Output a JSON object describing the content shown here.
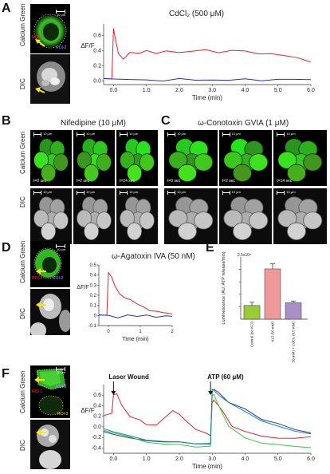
{
  "panels": {
    "A": {
      "letter": "A",
      "row_labels": [
        "Calcium Green",
        "DIC"
      ],
      "scale_text": "10 μm",
      "roi_labels": [
        "ROI-1",
        "ROI-2"
      ],
      "chart_title": "CdCl₂ (500 μM)"
    },
    "B": {
      "letter": "B",
      "title": "Nifedipine (10 μM)",
      "row_labels": [
        "Calcium Green",
        "DIC"
      ],
      "times": [
        "t=0 sec",
        "t=2 sec",
        "t=24 sec"
      ],
      "scale_text": "10 μm"
    },
    "C": {
      "letter": "C",
      "title": "ω-Conotoxin GVIA (1 μM)",
      "times": [
        "t=0 sec",
        "t=2 sec",
        "t=14 sec"
      ],
      "scale_text": "10 μm"
    },
    "D": {
      "letter": "D",
      "row_labels": [
        "Calcium Green",
        "DIC"
      ],
      "roi_labels": [
        "ROI-1",
        "ROI-2"
      ],
      "scale_text": "10 μm",
      "chart_title": "ω-Agatoxin IVA (50 nM)"
    },
    "E": {
      "letter": "E",
      "y_exp": "2.5x10⁵"
    },
    "F": {
      "letter": "F",
      "row_labels": [
        "Calcium Green",
        "DIC"
      ],
      "roi_labels": [
        "ROI-1",
        "ROI-2",
        "ROI-3"
      ],
      "scale_text": "10 μm",
      "annotations": [
        "Laser Wound",
        "ATP (60 μM)"
      ]
    }
  },
  "chart_data": [
    {
      "type": "line",
      "panel": "A",
      "title": "CdCl₂ (500 μM)",
      "xlabel": "Time (min)",
      "ylabel": "ΔF/F",
      "xlim": [
        -0.3,
        6.0
      ],
      "ylim": [
        -0.05,
        0.75
      ],
      "xticks": [
        "0.0",
        "1.0",
        "2.0",
        "3.0",
        "4.0",
        "5.0",
        "6.0"
      ],
      "yticks": [
        "0.0",
        "0.2",
        "0.4",
        "0.6"
      ],
      "series": [
        {
          "color": "#e8202a",
          "x": [
            -0.3,
            -0.05,
            0.0,
            0.05,
            0.15,
            0.3,
            0.5,
            0.8,
            1.0,
            1.3,
            1.6,
            2.0,
            2.4,
            2.8,
            3.2,
            3.6,
            4.0,
            4.4,
            4.8,
            5.2,
            5.6,
            6.0
          ],
          "y": [
            0.02,
            0.02,
            0.68,
            0.58,
            0.35,
            0.28,
            0.38,
            0.36,
            0.4,
            0.37,
            0.4,
            0.38,
            0.4,
            0.42,
            0.38,
            0.41,
            0.4,
            0.36,
            0.36,
            0.33,
            0.3,
            0.24
          ]
        },
        {
          "color": "#2030c8",
          "x": [
            -0.3,
            0.0,
            0.5,
            1.0,
            1.5,
            2.0,
            2.5,
            3.0,
            3.5,
            4.0,
            4.5,
            5.0,
            5.5,
            6.0
          ],
          "y": [
            0.02,
            0.02,
            0.01,
            0.02,
            0.0,
            0.02,
            0.01,
            0.02,
            0.0,
            0.02,
            0.01,
            0.02,
            0.01,
            0.02
          ]
        }
      ]
    },
    {
      "type": "line",
      "panel": "D",
      "title": "ω-Agatoxin IVA (50 nM)",
      "xlabel": "Time (min)",
      "ylabel": "ΔF/F",
      "xlim": [
        -0.3,
        2.0
      ],
      "ylim": [
        -0.1,
        0.5
      ],
      "xticks": [
        "0",
        "1",
        "2"
      ],
      "yticks": [
        "-0.1",
        "0",
        "0.1",
        "0.2",
        "0.3",
        "0.4",
        "0.5"
      ],
      "series": [
        {
          "color": "#e8202a",
          "x": [
            -0.3,
            -0.05,
            0.0,
            0.1,
            0.2,
            0.35,
            0.5,
            0.7,
            0.9,
            1.1,
            1.3,
            1.5,
            1.7,
            2.0
          ],
          "y": [
            0.0,
            0.0,
            0.42,
            0.38,
            0.3,
            0.22,
            0.18,
            0.15,
            0.12,
            0.08,
            0.05,
            0.04,
            0.03,
            0.02
          ]
        },
        {
          "color": "#2030c8",
          "x": [
            -0.3,
            0.0,
            0.3,
            0.6,
            0.9,
            1.2,
            1.5,
            1.8,
            2.0
          ],
          "y": [
            0.0,
            0.0,
            -0.02,
            0.01,
            -0.01,
            0.0,
            -0.02,
            0.0,
            -0.01
          ]
        }
      ]
    },
    {
      "type": "bar",
      "panel": "E",
      "ylabel": "Luminescence (AU; ATP release/min)",
      "y_exponent_label": "2.5x10⁵",
      "ylim": [
        0,
        2.5
      ],
      "categories": [
        "Control (no KCl)",
        "KCl (50 mM)",
        "KCl (50 mM) + CdCl₂ (0.5 mM)"
      ],
      "values": [
        0.55,
        2.02,
        0.66
      ],
      "errors": [
        0.13,
        0.2,
        0.07
      ],
      "colors": [
        "#99cc33",
        "#ee9a9a",
        "#a98fc4"
      ]
    },
    {
      "type": "line",
      "panel": "F",
      "xlabel": "Time (min)",
      "ylabel": "ΔF/F",
      "xlim": [
        -0.3,
        6.0
      ],
      "ylim": [
        -0.5,
        0.8
      ],
      "xticks": [
        "0.0",
        "1.0",
        "2.0",
        "3.0",
        "4.0",
        "5.0",
        "6.0"
      ],
      "yticks": [
        "-0.4",
        "-0.2",
        "0.0",
        "0.2",
        "0.4",
        "0.6"
      ],
      "annotations": [
        "Laser Wound",
        "ATP (60 μM)"
      ],
      "series": [
        {
          "color": "#e8202a",
          "x": [
            -0.3,
            -0.05,
            0.0,
            0.1,
            0.25,
            0.5,
            0.8,
            1.0,
            1.3,
            1.6,
            1.8,
            2.0,
            2.2,
            2.5,
            2.8,
            2.95,
            3.0,
            3.05,
            3.3,
            3.6,
            4.0,
            4.5,
            5.0,
            5.5,
            6.0
          ],
          "y": [
            0.2,
            0.25,
            0.6,
            0.62,
            0.4,
            0.2,
            0.12,
            0.05,
            0.05,
            0.2,
            0.3,
            0.25,
            0.1,
            -0.05,
            -0.1,
            -0.15,
            0.45,
            0.5,
            0.3,
            0.0,
            -0.1,
            -0.18,
            -0.2,
            -0.22,
            -0.2
          ]
        },
        {
          "color": "#2030c8",
          "x": [
            -0.3,
            0.0,
            0.5,
            1.0,
            1.5,
            2.0,
            2.5,
            2.95,
            3.0,
            3.05,
            3.2,
            3.5,
            4.0,
            4.5,
            5.0,
            5.5,
            6.0
          ],
          "y": [
            -0.1,
            -0.15,
            -0.22,
            -0.25,
            -0.28,
            -0.3,
            -0.32,
            -0.33,
            0.7,
            0.72,
            0.65,
            0.45,
            0.35,
            0.15,
            0.05,
            -0.05,
            -0.1
          ]
        },
        {
          "color": "#3cc83c",
          "x": [
            -0.3,
            0.0,
            0.5,
            1.0,
            1.5,
            2.0,
            2.5,
            2.95,
            3.0,
            3.05,
            3.2,
            3.5,
            4.0,
            4.5,
            5.0,
            5.5,
            6.0
          ],
          "y": [
            -0.08,
            -0.12,
            -0.2,
            -0.28,
            -0.32,
            -0.35,
            -0.38,
            -0.38,
            0.6,
            0.62,
            0.4,
            0.0,
            -0.2,
            -0.3,
            -0.35,
            -0.37,
            -0.38
          ]
        },
        {
          "color": "#1a8a8a",
          "x": [
            -0.3,
            0.0,
            0.5,
            1.0,
            1.5,
            2.0,
            2.5,
            2.95,
            3.0,
            3.05,
            3.2,
            3.5,
            4.0,
            4.5,
            5.0,
            5.5,
            6.0
          ],
          "y": [
            -0.05,
            -0.1,
            -0.18,
            -0.24,
            -0.27,
            -0.3,
            -0.32,
            -0.34,
            0.72,
            0.7,
            0.6,
            0.45,
            0.3,
            0.12,
            0.0,
            -0.08,
            -0.12
          ]
        }
      ]
    }
  ]
}
